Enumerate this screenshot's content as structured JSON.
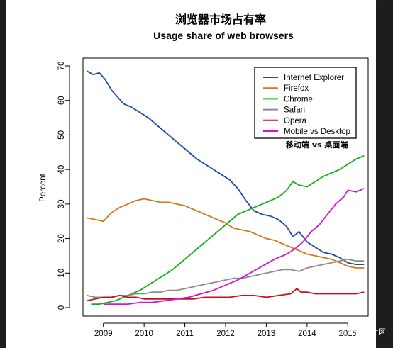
{
  "chart_data": {
    "type": "line",
    "title": "浏览器市场占有率",
    "subtitle": "Usage share of web browsers",
    "xlabel": "",
    "ylabel": "Percent",
    "xlim": [
      2008.5,
      2015.5
    ],
    "ylim": [
      0,
      70
    ],
    "x_ticks": [
      2009,
      2010,
      2011,
      2012,
      2013,
      2014,
      2015
    ],
    "y_ticks": [
      0,
      10,
      20,
      30,
      40,
      50,
      60,
      70
    ],
    "grid": false,
    "legend_position": "top-right",
    "annotation": "移动端 vs 桌面端",
    "series": [
      {
        "name": "Internet Explorer",
        "color": "#1f4aa8",
        "x": [
          2008.6,
          2008.75,
          2008.9,
          2009.05,
          2009.2,
          2009.35,
          2009.5,
          2009.7,
          2009.9,
          2010.1,
          2010.3,
          2010.5,
          2010.7,
          2010.9,
          2011.1,
          2011.3,
          2011.5,
          2011.7,
          2011.9,
          2012.1,
          2012.3,
          2012.5,
          2012.7,
          2012.9,
          2013.1,
          2013.3,
          2013.5,
          2013.65,
          2013.8,
          2014.0,
          2014.2,
          2014.4,
          2014.6,
          2014.8,
          2015.0,
          2015.2,
          2015.4
        ],
        "y": [
          68.5,
          67.5,
          68,
          66,
          63,
          61,
          59,
          58,
          56.5,
          55,
          53,
          51,
          49,
          47,
          45,
          43,
          41.5,
          40,
          38.5,
          37,
          34.5,
          31,
          28,
          27,
          26.5,
          25.5,
          23.5,
          20.5,
          22,
          19,
          17.5,
          16,
          15.5,
          14.5,
          13,
          12.5,
          12.5
        ]
      },
      {
        "name": "Firefox",
        "color": "#d4771b",
        "x": [
          2008.6,
          2008.8,
          2009.0,
          2009.2,
          2009.4,
          2009.6,
          2009.8,
          2010.0,
          2010.2,
          2010.4,
          2010.6,
          2010.8,
          2011.0,
          2011.2,
          2011.4,
          2011.6,
          2011.8,
          2012.0,
          2012.2,
          2012.4,
          2012.6,
          2012.8,
          2013.0,
          2013.2,
          2013.4,
          2013.6,
          2013.8,
          2014.0,
          2014.2,
          2014.4,
          2014.6,
          2014.8,
          2015.0,
          2015.2,
          2015.4
        ],
        "y": [
          26,
          25.5,
          25,
          27.5,
          29,
          30,
          31,
          31.5,
          31,
          30.5,
          30.5,
          30,
          29.5,
          28.5,
          27.5,
          26.5,
          25.5,
          24.5,
          23,
          22.5,
          22,
          21,
          20,
          19.5,
          18.5,
          17.5,
          16.5,
          15.5,
          15,
          14.5,
          14,
          13,
          12,
          11.5,
          11.5
        ]
      },
      {
        "name": "Chrome",
        "color": "#13b21a",
        "x": [
          2008.7,
          2008.9,
          2009.1,
          2009.3,
          2009.5,
          2009.7,
          2009.9,
          2010.1,
          2010.3,
          2010.5,
          2010.7,
          2010.9,
          2011.1,
          2011.3,
          2011.5,
          2011.7,
          2011.9,
          2012.1,
          2012.3,
          2012.5,
          2012.7,
          2012.9,
          2013.1,
          2013.3,
          2013.5,
          2013.65,
          2013.8,
          2014.0,
          2014.2,
          2014.4,
          2014.6,
          2014.8,
          2015.0,
          2015.2,
          2015.4
        ],
        "y": [
          1,
          1,
          1.5,
          2,
          3,
          4,
          5,
          6.5,
          8,
          9.5,
          11,
          13,
          15,
          17,
          19,
          21,
          23,
          25,
          27,
          28,
          29,
          30,
          31,
          32,
          34,
          36.5,
          35.5,
          35,
          36.5,
          38,
          39,
          40,
          41.5,
          43,
          44
        ]
      },
      {
        "name": "Safari",
        "color": "#8c8c8c",
        "x": [
          2008.6,
          2008.8,
          2009.0,
          2009.2,
          2009.4,
          2009.6,
          2009.8,
          2010.0,
          2010.2,
          2010.4,
          2010.6,
          2010.8,
          2011.0,
          2011.2,
          2011.4,
          2011.6,
          2011.8,
          2012.0,
          2012.2,
          2012.4,
          2012.6,
          2012.8,
          2013.0,
          2013.2,
          2013.4,
          2013.6,
          2013.8,
          2014.0,
          2014.2,
          2014.4,
          2014.6,
          2014.8,
          2015.0,
          2015.2,
          2015.4
        ],
        "y": [
          3.5,
          3,
          3,
          3,
          3.5,
          3.5,
          4,
          4,
          4.5,
          4.5,
          5,
          5,
          5.5,
          6,
          6.5,
          7,
          7.5,
          8,
          8.5,
          8.5,
          9,
          9.5,
          10,
          10.5,
          11,
          11,
          10.5,
          11.5,
          12,
          12.5,
          13,
          13.5,
          14,
          13.5,
          13.5
        ]
      },
      {
        "name": "Opera",
        "color": "#c0121a",
        "x": [
          2008.6,
          2008.8,
          2009.0,
          2009.2,
          2009.4,
          2009.6,
          2009.8,
          2010.0,
          2010.3,
          2010.6,
          2010.9,
          2011.2,
          2011.5,
          2011.8,
          2012.1,
          2012.4,
          2012.7,
          2013.0,
          2013.3,
          2013.6,
          2013.75,
          2013.85,
          2014.0,
          2014.2,
          2014.4,
          2014.6,
          2014.8,
          2015.0,
          2015.2,
          2015.4
        ],
        "y": [
          2,
          2.5,
          3,
          3,
          3.5,
          3,
          3,
          2.5,
          2.5,
          2.5,
          2.5,
          2.5,
          3,
          3,
          3,
          3.5,
          3.5,
          3,
          3.5,
          4,
          5.5,
          4.5,
          4.5,
          4,
          4,
          4,
          4,
          4,
          4,
          4.5
        ]
      },
      {
        "name": "Mobile vs Desktop",
        "color": "#d413d4",
        "x": [
          2009.0,
          2009.3,
          2009.6,
          2009.9,
          2010.2,
          2010.5,
          2010.8,
          2011.1,
          2011.4,
          2011.7,
          2012.0,
          2012.3,
          2012.6,
          2012.9,
          2013.2,
          2013.5,
          2013.7,
          2013.9,
          2014.1,
          2014.3,
          2014.5,
          2014.7,
          2014.9,
          2015.0,
          2015.2,
          2015.4
        ],
        "y": [
          1,
          1,
          1,
          1.5,
          1.5,
          2,
          2.5,
          3,
          4,
          5,
          6.5,
          8,
          10,
          12,
          14,
          15.5,
          17,
          19,
          22,
          24,
          27,
          30,
          32,
          34,
          33.5,
          34.5
        ]
      }
    ]
  },
  "watermark": "@稀土掘金技术社区"
}
